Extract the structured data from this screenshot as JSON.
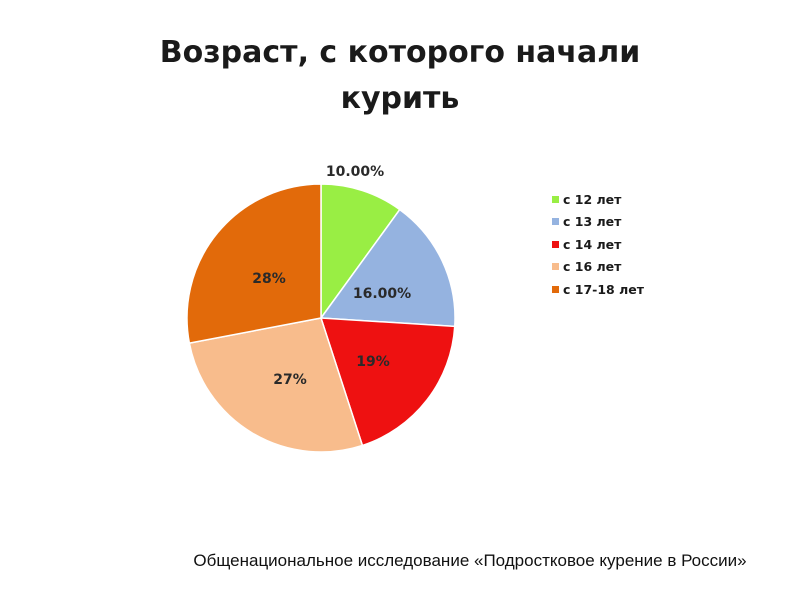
{
  "chart_data": {
    "type": "pie",
    "title": "Возраст, с которого начали курить",
    "slices": [
      {
        "label": "с 12 лет",
        "value": 10,
        "display": "10.00%",
        "color": "#99ee44"
      },
      {
        "label": "с 13 лет",
        "value": 16,
        "display": "16.00%",
        "color": "#95b3e0"
      },
      {
        "label": "с 14 лет",
        "value": 19,
        "display": "19%",
        "color": "#ee1111"
      },
      {
        "label": "с 16 лет",
        "value": 27,
        "display": "27%",
        "color": "#f8bc8c"
      },
      {
        "label": "с 17-18 лет",
        "value": 28,
        "display": "28%",
        "color": "#e26a0a"
      }
    ],
    "legend_position": "right"
  },
  "source_note": "Общенациональное исследование «Подростковое курение в России»"
}
